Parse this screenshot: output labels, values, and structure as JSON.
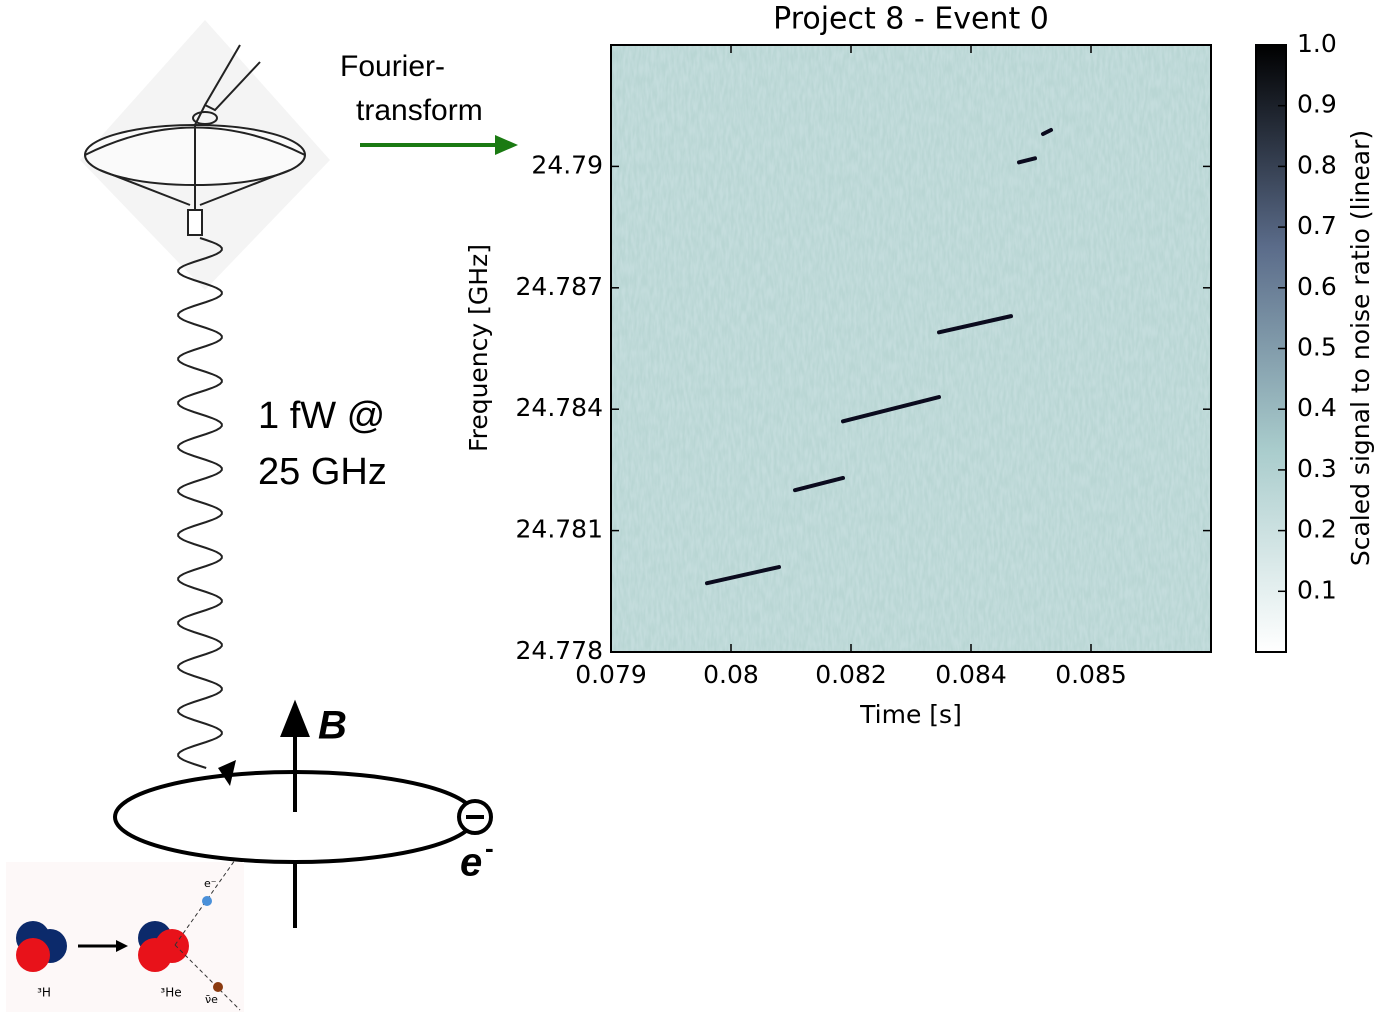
{
  "chart_data": {
    "type": "spectrogram",
    "title": "Project 8 - Event 0",
    "x_label": "Time [s]",
    "y_label": "Frequency [GHz]",
    "colorbar_label": "Scaled signal to noise ratio (linear)",
    "xlim": [
      0.079,
      0.0865
    ],
    "xticks": [
      0.079,
      {
        "value": 0.0805,
        "label": "0.08"
      },
      0.082,
      {
        "value": 0.0835,
        "label": "0.084"
      },
      0.085
    ],
    "ylim": [
      24.778,
      24.793
    ],
    "yticks": [
      24.778,
      24.781,
      24.784,
      24.787,
      24.79
    ],
    "clim": [
      0,
      1
    ],
    "cticks": [
      0.1,
      0.2,
      0.3,
      0.4,
      0.5,
      0.6,
      0.7,
      0.8,
      0.9,
      {
        "value": 1,
        "label": "1.0"
      }
    ],
    "colormap": [
      "#ffffff",
      "#a9cccc",
      "#5b6c8a",
      "#000000"
    ],
    "tracks": [
      {
        "x": [
          0.0802,
          0.0811
        ],
        "y": [
          24.7797,
          24.7801
        ]
      },
      {
        "x": [
          0.0813,
          0.0819
        ],
        "y": [
          24.782,
          24.7823
        ]
      },
      {
        "x": [
          0.0819,
          0.0831
        ],
        "y": [
          24.7837,
          24.7843
        ]
      },
      {
        "x": [
          0.0831,
          0.084
        ],
        "y": [
          24.7859,
          24.7863
        ]
      },
      {
        "x": [
          0.0841,
          0.0843
        ],
        "y": [
          24.7901,
          24.7902
        ]
      },
      {
        "x": [
          0.0844,
          0.0845
        ],
        "y": [
          24.7908,
          24.7909
        ]
      }
    ]
  },
  "diagram": {
    "arrow_label": [
      "Fourier-",
      "transform"
    ],
    "power": [
      "1 fW @",
      "25 GHz"
    ],
    "field": "B",
    "electron": "e",
    "electron_charge": "-",
    "decay": {
      "parent": "³H",
      "daughter": "³He",
      "electron": "e⁻",
      "neutrino": "ν̄e"
    }
  }
}
